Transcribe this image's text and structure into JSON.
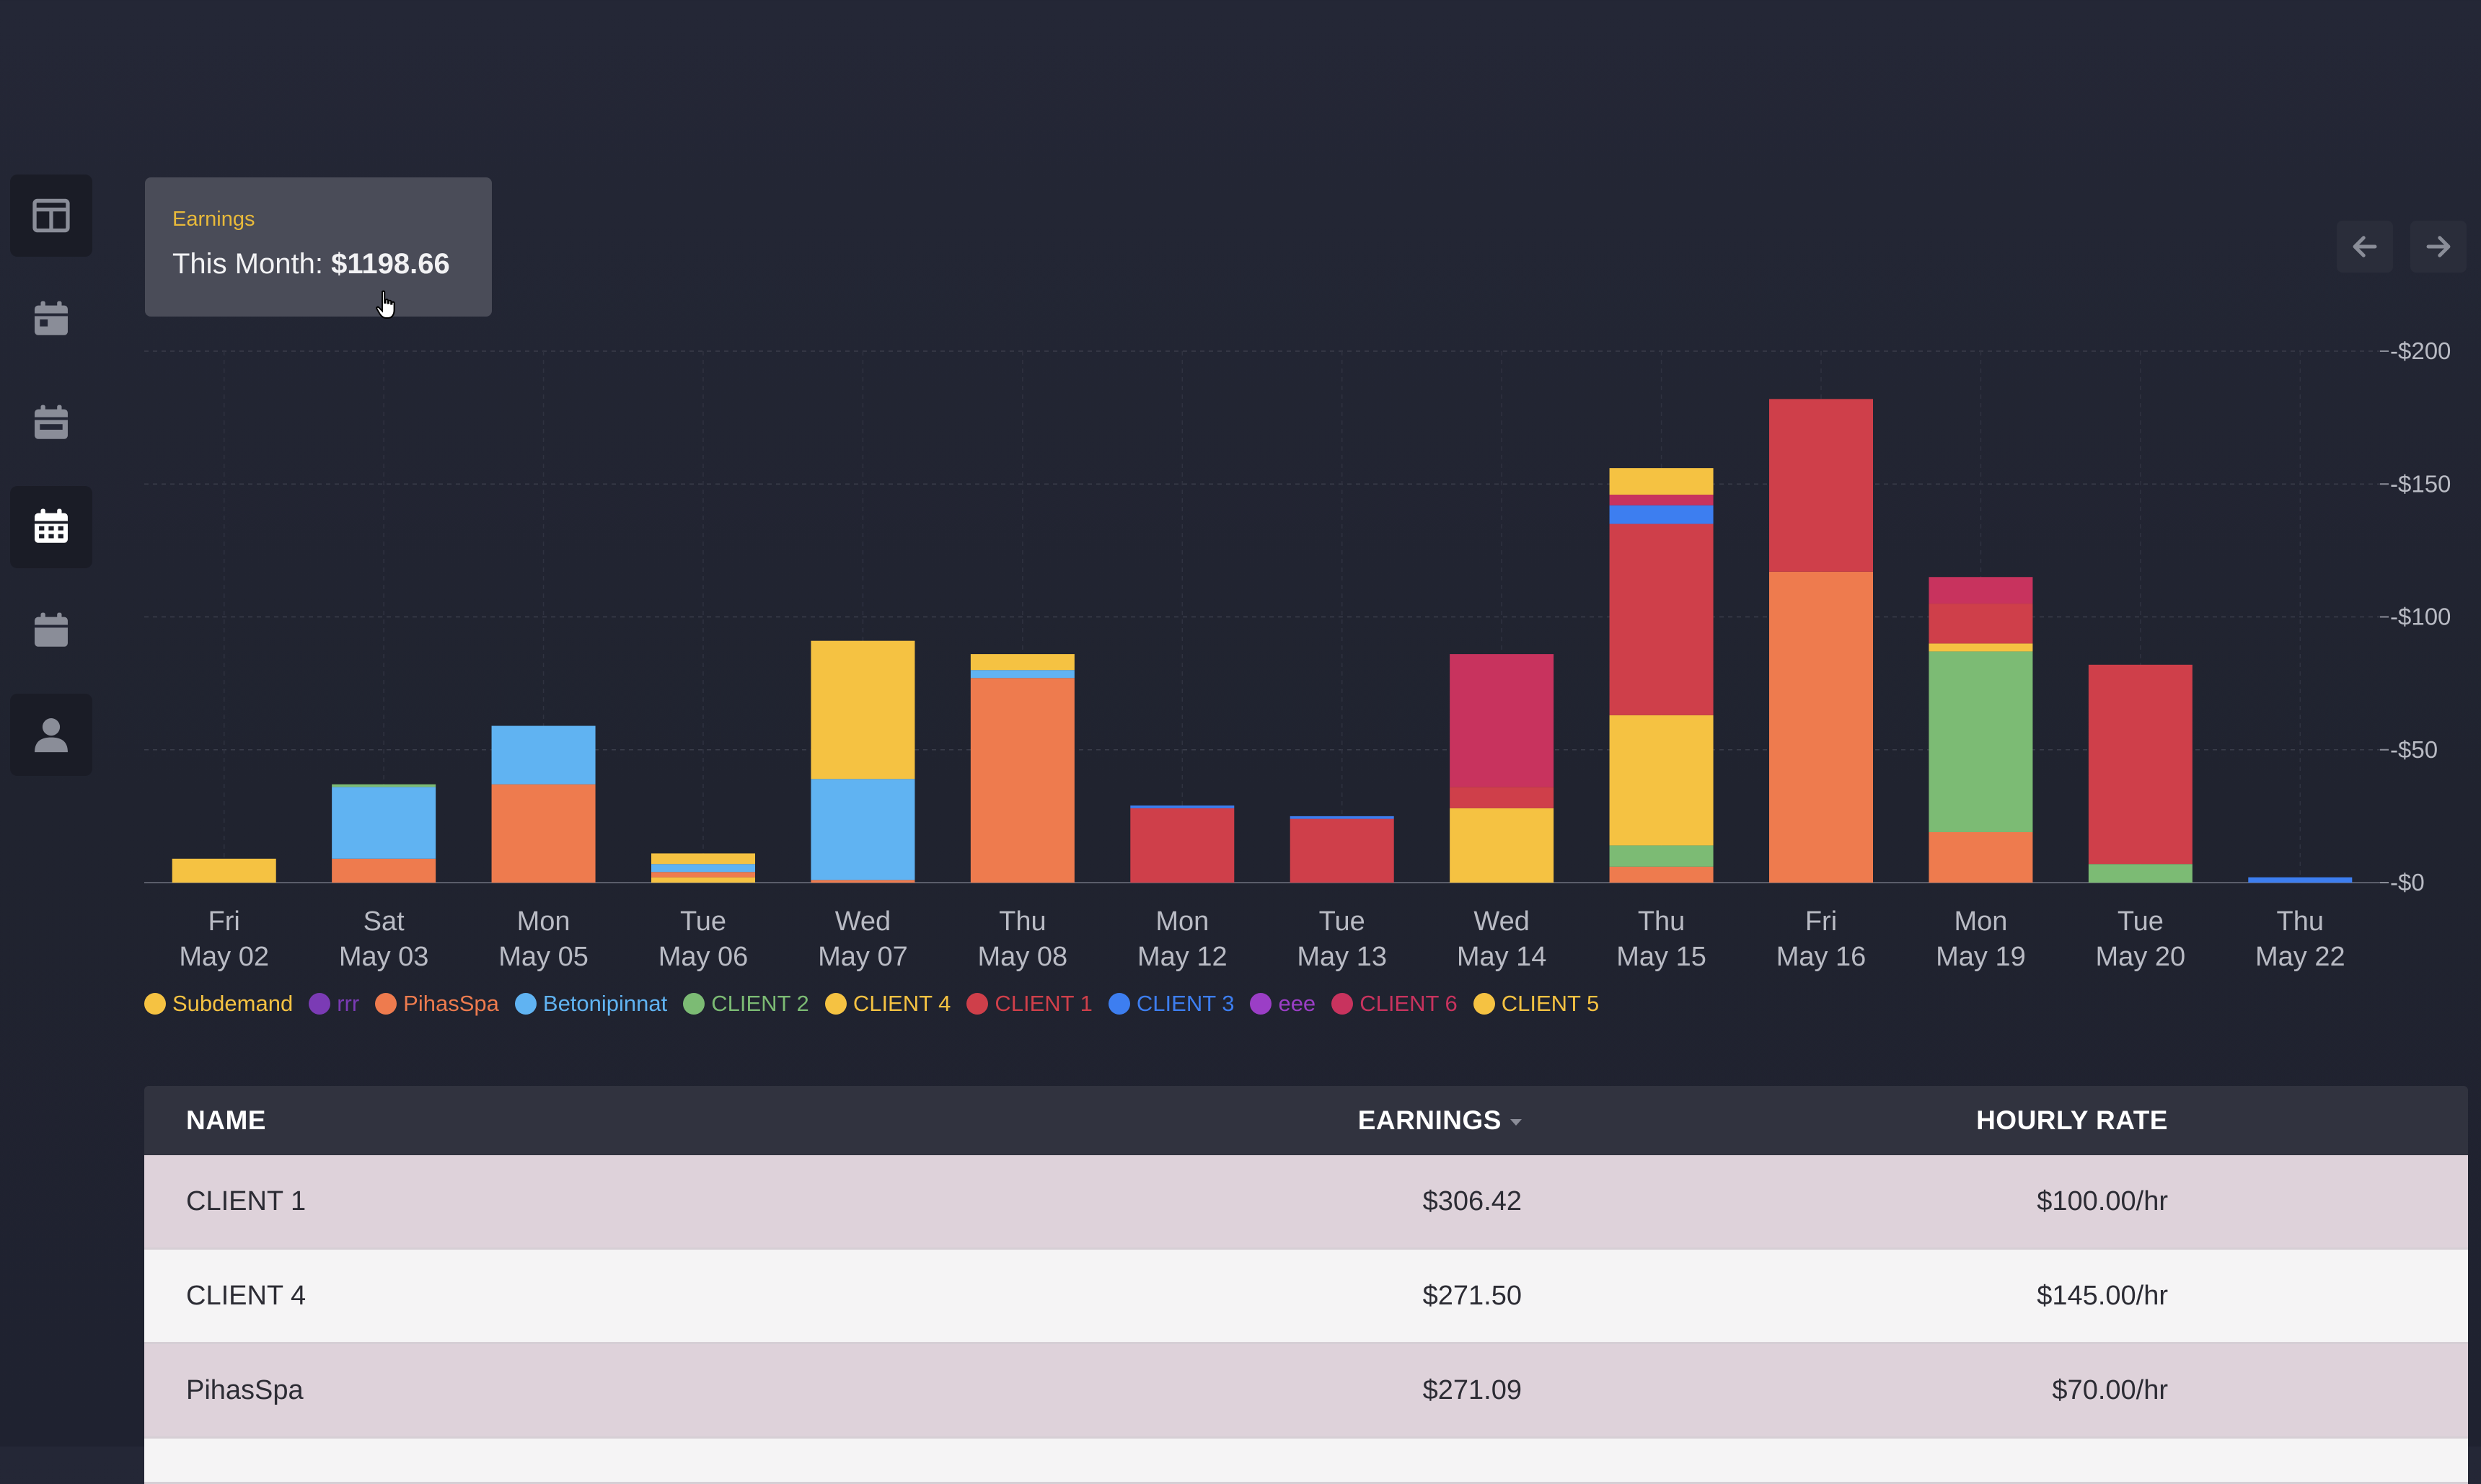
{
  "sidebar": {
    "items": [
      {
        "icon": "dashboard-icon"
      },
      {
        "icon": "calendar-day-icon"
      },
      {
        "icon": "calendar-week-icon"
      },
      {
        "icon": "calendar-month-icon"
      },
      {
        "icon": "calendar-icon"
      },
      {
        "icon": "user-icon"
      }
    ]
  },
  "summary": {
    "label": "Earnings",
    "prefix": "This Month: ",
    "value": "$1198.66"
  },
  "nav": {
    "prev_icon": "arrow-left-icon",
    "next_icon": "arrow-right-icon"
  },
  "chart_data": {
    "type": "bar",
    "stacked": true,
    "categories": [
      [
        "Fri",
        "May 02"
      ],
      [
        "Sat",
        "May 03"
      ],
      [
        "Mon",
        "May 05"
      ],
      [
        "Tue",
        "May 06"
      ],
      [
        "Wed",
        "May 07"
      ],
      [
        "Thu",
        "May 08"
      ],
      [
        "Mon",
        "May 12"
      ],
      [
        "Tue",
        "May 13"
      ],
      [
        "Wed",
        "May 14"
      ],
      [
        "Thu",
        "May 15"
      ],
      [
        "Fri",
        "May 16"
      ],
      [
        "Mon",
        "May 19"
      ],
      [
        "Tue",
        "May 20"
      ],
      [
        "Thu",
        "May 22"
      ]
    ],
    "ylim": [
      0,
      200
    ],
    "yticks": [
      0,
      50,
      100,
      150,
      200
    ],
    "ytick_labels": [
      "$0",
      "$50",
      "$100",
      "$150",
      "$200"
    ],
    "y_axis_side": "right",
    "grid": true,
    "legend_position": "bottom-left",
    "series": [
      {
        "name": "Subdemand",
        "color": "#f5c242",
        "values": [
          9,
          0,
          0,
          2,
          0,
          0,
          0,
          0,
          0,
          0,
          0,
          0,
          0,
          0
        ]
      },
      {
        "name": "rrr",
        "color": "#7b3bb5",
        "values": [
          0,
          0,
          0,
          0,
          0,
          0,
          0,
          0,
          0,
          0,
          0,
          0,
          0,
          0
        ]
      },
      {
        "name": "PihasSpa",
        "color": "#ee7b4e",
        "values": [
          0,
          9,
          37,
          2,
          1,
          77,
          0,
          0,
          0,
          6,
          117,
          19,
          0,
          0
        ]
      },
      {
        "name": "Betonipinnat",
        "color": "#60b3f2",
        "values": [
          0,
          27,
          22,
          3,
          38,
          3,
          0,
          0,
          0,
          0,
          0,
          0,
          0,
          0
        ]
      },
      {
        "name": "CLIENT 2",
        "color": "#7cbb74",
        "values": [
          0,
          1,
          0,
          0,
          0,
          0,
          0,
          0,
          0,
          8,
          0,
          68,
          7,
          0
        ]
      },
      {
        "name": "CLIENT 4",
        "color": "#f5c242",
        "values": [
          0,
          0,
          0,
          4,
          52,
          6,
          0,
          0,
          28,
          49,
          0,
          3,
          0,
          0
        ]
      },
      {
        "name": "CLIENT 1",
        "color": "#cf3f4a",
        "values": [
          0,
          0,
          0,
          0,
          0,
          0,
          28,
          24,
          8,
          72,
          65,
          15,
          75,
          0
        ]
      },
      {
        "name": "CLIENT 3",
        "color": "#3d7ef0",
        "values": [
          0,
          0,
          0,
          0,
          0,
          0,
          1,
          1,
          0,
          7,
          0,
          0,
          0,
          2
        ]
      },
      {
        "name": "eee",
        "color": "#9b3ec6",
        "values": [
          0,
          0,
          0,
          0,
          0,
          0,
          0,
          0,
          0,
          0,
          0,
          0,
          0,
          0
        ]
      },
      {
        "name": "CLIENT 6",
        "color": "#c8335e",
        "values": [
          0,
          0,
          0,
          0,
          0,
          0,
          0,
          0,
          50,
          4,
          0,
          10,
          0,
          0
        ]
      },
      {
        "name": "CLIENT 5",
        "color": "#f5c242",
        "values": [
          0,
          0,
          0,
          0,
          0,
          0,
          0,
          0,
          0,
          10,
          0,
          0,
          0,
          0
        ]
      }
    ]
  },
  "table": {
    "headers": {
      "name": "NAME",
      "earnings": "EARNINGS",
      "rate": "HOURLY RATE"
    },
    "rows": [
      {
        "name": "CLIENT 1",
        "earnings": "$306.42",
        "rate": "$100.00/hr"
      },
      {
        "name": "CLIENT 4",
        "earnings": "$271.50",
        "rate": "$145.00/hr"
      },
      {
        "name": "PihasSpa",
        "earnings": "$271.09",
        "rate": "$70.00/hr"
      }
    ]
  }
}
